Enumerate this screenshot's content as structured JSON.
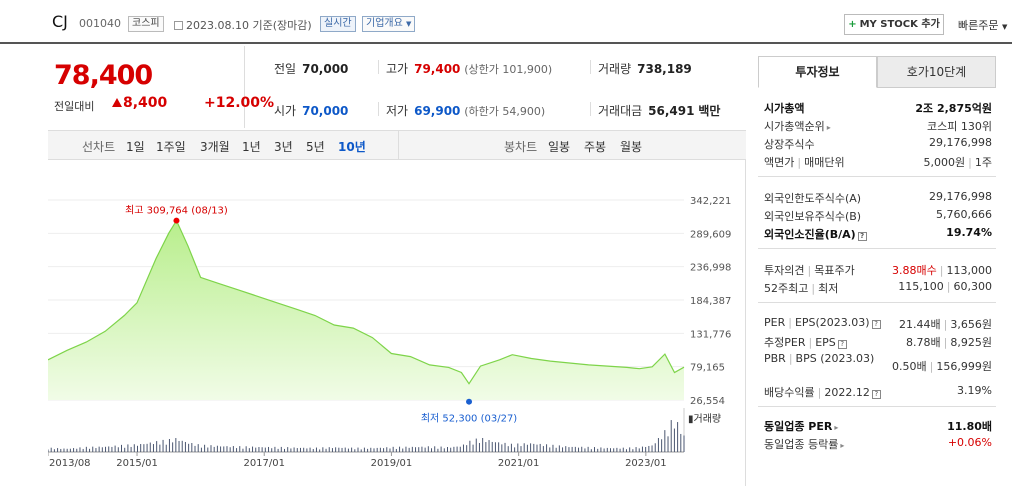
{
  "header": {
    "name": "CJ",
    "code": "001040",
    "market_badge": "코스피",
    "date": "2023.08.10",
    "date_basis": "기준(장마감)",
    "live_badge": "실시간",
    "corp_info": "기업개요",
    "mystock_label": "MY STOCK 추가",
    "quick_order": "빠른주문"
  },
  "price": {
    "current": "78,400",
    "change_label": "전일대비",
    "change": "8,400",
    "change_pct": "+12.00%"
  },
  "stats": {
    "prev_close_label": "전일",
    "prev_close": "70,000",
    "high_label": "고가",
    "high": "79,400",
    "upper_limit": "(상한가 101,900)",
    "volume_label": "거래량",
    "volume": "738,189",
    "open_label": "시가",
    "open": "70,000",
    "low_label": "저가",
    "low": "69,900",
    "lower_limit": "(하한가 54,900)",
    "amount_label": "거래대금",
    "amount": "56,491",
    "amount_unit": "백만"
  },
  "chart_tabs": {
    "line_label": "선차트",
    "periods": [
      "1일",
      "1주일",
      "3개월",
      "1년",
      "3년",
      "5년",
      "10년"
    ],
    "active_period": "10년",
    "candle_label": "봉차트",
    "candles": [
      "일봉",
      "주봉",
      "월봉"
    ]
  },
  "chart_data": {
    "type": "area",
    "x_ticks": [
      "2013/08",
      "2015/01",
      "2017/01",
      "2019/01",
      "2021/01",
      "2023/01"
    ],
    "y_ticks": [
      "342,221",
      "289,609",
      "236,998",
      "184,387",
      "131,776",
      "79,165",
      "26,554"
    ],
    "ylim": [
      26554,
      342221
    ],
    "high_label": "최고 309,764 (08/13)",
    "low_label": "최저 52,300 (03/27)",
    "volume_label": "거래량",
    "x": [
      2013.6,
      2013.9,
      2014.2,
      2014.5,
      2014.8,
      2015.0,
      2015.3,
      2015.5,
      2015.62,
      2015.8,
      2016.0,
      2016.3,
      2016.6,
      2016.9,
      2017.2,
      2017.5,
      2017.8,
      2018.1,
      2018.4,
      2018.7,
      2019.0,
      2019.3,
      2019.6,
      2019.9,
      2020.1,
      2020.22,
      2020.4,
      2020.7,
      2020.9,
      2021.2,
      2021.5,
      2021.8,
      2022.1,
      2022.4,
      2022.7,
      2022.9,
      2023.1,
      2023.3,
      2023.45,
      2023.6
    ],
    "y": [
      90000,
      105000,
      118000,
      135000,
      160000,
      180000,
      250000,
      290000,
      309764,
      270000,
      220000,
      210000,
      200000,
      190000,
      180000,
      170000,
      160000,
      145000,
      140000,
      125000,
      100000,
      95000,
      82000,
      78000,
      70000,
      52300,
      80000,
      90000,
      98000,
      92000,
      88000,
      85000,
      82000,
      80000,
      78000,
      76000,
      79000,
      99000,
      70000,
      78400
    ],
    "volume": [
      12,
      10,
      14,
      16,
      20,
      22,
      30,
      35,
      40,
      28,
      20,
      18,
      16,
      15,
      14,
      13,
      12,
      14,
      12,
      12,
      14,
      15,
      16,
      14,
      18,
      30,
      40,
      28,
      22,
      26,
      20,
      16,
      14,
      12,
      12,
      14,
      20,
      60,
      100,
      48
    ]
  },
  "right_panel": {
    "tab_invest": "투자정보",
    "tab_order": "호가10단계",
    "rows1": [
      {
        "label": "시가총액",
        "value": "2조 2,875억원"
      },
      {
        "label": "시가총액순위",
        "value": "코스피 130위"
      },
      {
        "label": "상장주식수",
        "value": "29,176,998"
      },
      {
        "label": "액면가",
        "label2": "매매단위",
        "value": "5,000원",
        "value2": "1주"
      }
    ],
    "rows2": [
      {
        "label": "외국인한도주식수(A)",
        "value": "29,176,998"
      },
      {
        "label": "외국인보유주식수(B)",
        "value": "5,760,666"
      },
      {
        "label": "외국인소진율(B/A)",
        "value": "19.74%"
      }
    ],
    "rows3": [
      {
        "label": "투자의견",
        "label2": "목표주가",
        "value": "3.88매수",
        "value2": "113,000"
      },
      {
        "label": "52주최고",
        "label2": "최저",
        "value": "115,100",
        "value2": "60,300"
      }
    ],
    "rows4": [
      {
        "label": "PER",
        "label2": "EPS(2023.03)",
        "value": "21.44배",
        "value2": "3,656원"
      },
      {
        "label": "추정PER",
        "label2": "EPS",
        "value": "8.78배",
        "value2": "8,925원"
      },
      {
        "label": "PBR",
        "label2": "BPS (2023.03)",
        "value": "0.50배",
        "value2": "156,999원"
      },
      {
        "label": "배당수익률",
        "label2": "2022.12",
        "value": "3.19%"
      }
    ],
    "rows5": [
      {
        "label": "동일업종 PER",
        "value": "11.80배"
      },
      {
        "label": "동일업종 등락률",
        "value": "+0.06%"
      }
    ]
  }
}
